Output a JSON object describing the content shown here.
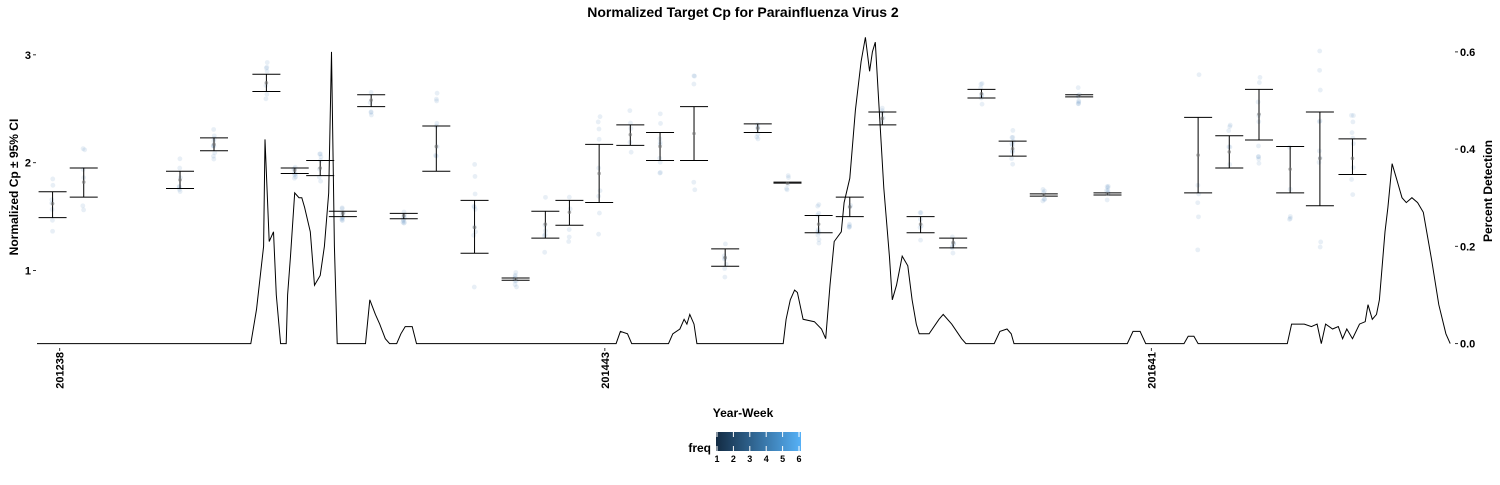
{
  "chart_data": {
    "type": "line",
    "title": "Normalized Target Cp for Parainfluenza Virus 2",
    "xlabel": "Year-Week",
    "ylabel_left": "Normalized Cp  ± 95% CI",
    "ylabel_right": "Percent Detection",
    "x_range": [
      0,
      1000
    ],
    "left_axis": {
      "range": [
        0.3,
        3.23
      ],
      "ticks": [
        "1",
        "2",
        "3"
      ]
    },
    "right_axis": {
      "range": [
        -0.005,
        0.645
      ],
      "ticks": [
        "0.0",
        "0.2",
        "0.4",
        "0.6"
      ]
    },
    "x_ticks": [
      {
        "x": 16,
        "label": "201238"
      },
      {
        "x": 401,
        "label": "201443"
      },
      {
        "x": 787,
        "label": "201641"
      }
    ],
    "grid": false,
    "legend": {
      "title": "freq",
      "placement": "bottom",
      "labels": [
        "1",
        "2",
        "3",
        "4",
        "5",
        "6"
      ],
      "color_low": "#132B43",
      "color_high": "#56B1F7"
    },
    "colors": {
      "point": "#4a82b6",
      "line": "#000000",
      "errorbar": "#000000"
    },
    "error_bars": [
      {
        "x": 11,
        "lower": 1.49,
        "mean": 1.62,
        "upper": 1.73
      },
      {
        "x": 33,
        "lower": 1.68,
        "mean": 1.82,
        "upper": 1.95
      },
      {
        "x": 101,
        "lower": 1.76,
        "mean": 1.84,
        "upper": 1.92
      },
      {
        "x": 125,
        "lower": 2.11,
        "mean": 2.17,
        "upper": 2.23
      },
      {
        "x": 162,
        "lower": 2.66,
        "mean": 2.74,
        "upper": 2.82
      },
      {
        "x": 182,
        "lower": 1.9,
        "mean": 1.93,
        "upper": 1.95
      },
      {
        "x": 200,
        "lower": 1.88,
        "mean": 1.95,
        "upper": 2.02
      },
      {
        "x": 216,
        "lower": 1.5,
        "mean": 1.53,
        "upper": 1.55
      },
      {
        "x": 236,
        "lower": 2.52,
        "mean": 2.58,
        "upper": 2.63
      },
      {
        "x": 259,
        "lower": 1.48,
        "mean": 1.51,
        "upper": 1.53
      },
      {
        "x": 282,
        "lower": 1.92,
        "mean": 2.15,
        "upper": 2.34
      },
      {
        "x": 309,
        "lower": 1.16,
        "mean": 1.4,
        "upper": 1.65
      },
      {
        "x": 338,
        "lower": 0.91,
        "mean": 0.92,
        "upper": 0.93
      },
      {
        "x": 359,
        "lower": 1.3,
        "mean": 1.43,
        "upper": 1.55
      },
      {
        "x": 376,
        "lower": 1.42,
        "mean": 1.54,
        "upper": 1.65
      },
      {
        "x": 397,
        "lower": 1.63,
        "mean": 1.9,
        "upper": 2.17
      },
      {
        "x": 419,
        "lower": 2.16,
        "mean": 2.26,
        "upper": 2.35
      },
      {
        "x": 440,
        "lower": 2.02,
        "mean": 2.15,
        "upper": 2.28
      },
      {
        "x": 464,
        "lower": 2.02,
        "mean": 2.27,
        "upper": 2.52
      },
      {
        "x": 486,
        "lower": 1.04,
        "mean": 1.12,
        "upper": 1.2
      },
      {
        "x": 509,
        "lower": 2.28,
        "mean": 2.32,
        "upper": 2.36
      },
      {
        "x": 530,
        "lower": 1.81,
        "mean": 1.81,
        "upper": 1.82
      },
      {
        "x": 552,
        "lower": 1.35,
        "mean": 1.43,
        "upper": 1.51
      },
      {
        "x": 574,
        "lower": 1.5,
        "mean": 1.59,
        "upper": 1.68
      },
      {
        "x": 597,
        "lower": 2.35,
        "mean": 2.41,
        "upper": 2.47
      },
      {
        "x": 624,
        "lower": 1.35,
        "mean": 1.43,
        "upper": 1.5
      },
      {
        "x": 647,
        "lower": 1.21,
        "mean": 1.26,
        "upper": 1.3
      },
      {
        "x": 667,
        "lower": 2.6,
        "mean": 2.64,
        "upper": 2.68
      },
      {
        "x": 689,
        "lower": 2.06,
        "mean": 2.13,
        "upper": 2.2
      },
      {
        "x": 711,
        "lower": 1.69,
        "mean": 1.7,
        "upper": 1.71
      },
      {
        "x": 736,
        "lower": 2.61,
        "mean": 2.62,
        "upper": 2.63
      },
      {
        "x": 756,
        "lower": 1.7,
        "mean": 1.71,
        "upper": 1.72
      },
      {
        "x": 820,
        "lower": 1.72,
        "mean": 2.07,
        "upper": 2.42
      },
      {
        "x": 842,
        "lower": 1.95,
        "mean": 2.1,
        "upper": 2.25
      },
      {
        "x": 863,
        "lower": 2.21,
        "mean": 2.45,
        "upper": 2.68
      },
      {
        "x": 885,
        "lower": 1.72,
        "mean": 1.94,
        "upper": 2.15
      },
      {
        "x": 906,
        "lower": 1.6,
        "mean": 2.04,
        "upper": 2.47
      },
      {
        "x": 929,
        "lower": 1.89,
        "mean": 2.04,
        "upper": 2.22
      }
    ],
    "detection_line": [
      [
        0,
        0
      ],
      [
        151,
        0
      ],
      [
        155,
        0.07
      ],
      [
        160,
        0.2
      ],
      [
        161,
        0.42
      ],
      [
        164,
        0.21
      ],
      [
        167,
        0.23
      ],
      [
        169,
        0.1
      ],
      [
        172,
        0
      ],
      [
        176,
        0
      ],
      [
        177,
        0.1
      ],
      [
        179,
        0.18
      ],
      [
        182,
        0.31
      ],
      [
        185,
        0.3
      ],
      [
        187,
        0.3
      ],
      [
        189,
        0.28
      ],
      [
        193,
        0.23
      ],
      [
        196,
        0.12
      ],
      [
        200,
        0.14
      ],
      [
        203,
        0.2
      ],
      [
        206,
        0.31
      ],
      [
        208,
        0.6
      ],
      [
        210,
        0.2
      ],
      [
        212,
        0
      ],
      [
        232,
        0
      ],
      [
        235,
        0.09
      ],
      [
        239,
        0.06
      ],
      [
        242,
        0.04
      ],
      [
        246,
        0.01
      ],
      [
        249,
        0
      ],
      [
        254,
        0
      ],
      [
        257,
        0.02
      ],
      [
        260,
        0.035
      ],
      [
        265,
        0.035
      ],
      [
        268,
        0
      ],
      [
        409,
        0
      ],
      [
        412,
        0.025
      ],
      [
        417,
        0.02
      ],
      [
        420,
        0
      ],
      [
        446,
        0
      ],
      [
        449,
        0.02
      ],
      [
        454,
        0.03
      ],
      [
        457,
        0.05
      ],
      [
        459,
        0.04
      ],
      [
        461,
        0.06
      ],
      [
        464,
        0.04
      ],
      [
        466,
        0
      ],
      [
        527,
        0
      ],
      [
        529,
        0.05
      ],
      [
        532,
        0.09
      ],
      [
        535,
        0.11
      ],
      [
        537,
        0.105
      ],
      [
        541,
        0.05
      ],
      [
        549,
        0.045
      ],
      [
        554,
        0.03
      ],
      [
        557,
        0.01
      ],
      [
        560,
        0.12
      ],
      [
        563,
        0.21
      ],
      [
        568,
        0.23
      ],
      [
        570,
        0.29
      ],
      [
        574,
        0.34
      ],
      [
        578,
        0.48
      ],
      [
        582,
        0.58
      ],
      [
        585,
        0.63
      ],
      [
        588,
        0.56
      ],
      [
        590,
        0.6
      ],
      [
        592,
        0.62
      ],
      [
        594,
        0.52
      ],
      [
        598,
        0.32
      ],
      [
        602,
        0.18
      ],
      [
        604,
        0.09
      ],
      [
        607,
        0.12
      ],
      [
        611,
        0.18
      ],
      [
        615,
        0.16
      ],
      [
        618,
        0.09
      ],
      [
        621,
        0.04
      ],
      [
        623,
        0.02
      ],
      [
        630,
        0.02
      ],
      [
        637,
        0.05
      ],
      [
        640,
        0.06
      ],
      [
        646,
        0.04
      ],
      [
        653,
        0.01
      ],
      [
        656,
        0
      ],
      [
        676,
        0
      ],
      [
        680,
        0.025
      ],
      [
        685,
        0.03
      ],
      [
        688,
        0.02
      ],
      [
        690,
        0
      ],
      [
        770,
        0
      ],
      [
        774,
        0.025
      ],
      [
        779,
        0.025
      ],
      [
        783,
        0
      ],
      [
        810,
        0
      ],
      [
        813,
        0.015
      ],
      [
        817,
        0.015
      ],
      [
        820,
        0
      ],
      [
        883,
        0
      ],
      [
        886,
        0.04
      ],
      [
        890,
        0.04
      ],
      [
        895,
        0.04
      ],
      [
        900,
        0.035
      ],
      [
        904,
        0.04
      ],
      [
        907,
        0
      ],
      [
        910,
        0.04
      ],
      [
        915,
        0.03
      ],
      [
        919,
        0.035
      ],
      [
        922,
        0.01
      ],
      [
        925,
        0.03
      ],
      [
        929,
        0.01
      ],
      [
        934,
        0.04
      ],
      [
        938,
        0.045
      ],
      [
        940,
        0.08
      ],
      [
        943,
        0.05
      ],
      [
        946,
        0.06
      ],
      [
        948,
        0.09
      ],
      [
        952,
        0.23
      ],
      [
        954,
        0.28
      ],
      [
        957,
        0.37
      ],
      [
        960,
        0.34
      ],
      [
        964,
        0.3
      ],
      [
        967,
        0.29
      ],
      [
        971,
        0.3
      ],
      [
        975,
        0.29
      ],
      [
        979,
        0.27
      ],
      [
        985,
        0.17
      ],
      [
        990,
        0.08
      ],
      [
        995,
        0.02
      ],
      [
        998,
        0
      ]
    ]
  }
}
